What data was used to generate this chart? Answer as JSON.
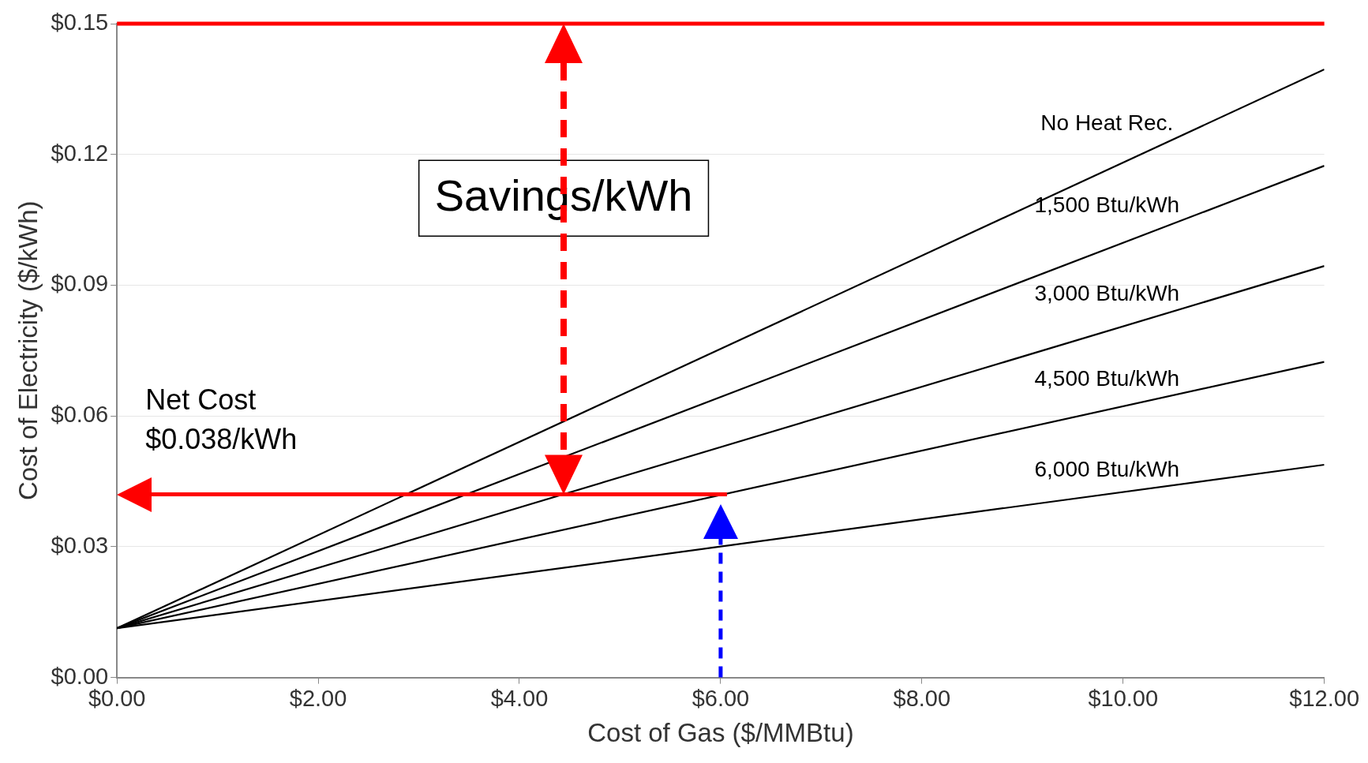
{
  "chart_data": {
    "type": "line",
    "xlabel": "Cost of Gas ($/MMBtu)",
    "ylabel": "Cost of Electricity ($/kWh)",
    "x": [
      0,
      12
    ],
    "series": [
      {
        "name": "No Heat Rec.",
        "color": "#000000",
        "values": [
          0.0113,
          0.1395
        ]
      },
      {
        "name": "1,500 Btu/kWh",
        "color": "#000000",
        "values": [
          0.0113,
          0.1174
        ]
      },
      {
        "name": "3,000 Btu/kWh",
        "color": "#000000",
        "values": [
          0.0113,
          0.0944
        ]
      },
      {
        "name": "4,500 Btu/kWh",
        "color": "#000000",
        "values": [
          0.0113,
          0.0724
        ]
      },
      {
        "name": "6,000 Btu/kWh",
        "color": "#000000",
        "values": [
          0.0113,
          0.0488
        ]
      }
    ],
    "xlim": [
      0,
      12
    ],
    "xticks": [
      {
        "value": 0,
        "label": "$0.00"
      },
      {
        "value": 2,
        "label": "$2.00"
      },
      {
        "value": 4,
        "label": "$4.00"
      },
      {
        "value": 6,
        "label": "$6.00"
      },
      {
        "value": 8,
        "label": "$8.00"
      },
      {
        "value": 10,
        "label": "$10.00"
      },
      {
        "value": 12,
        "label": "$12.00"
      }
    ],
    "ylim": [
      0,
      0.15
    ],
    "yticks": [
      {
        "value": 0,
        "label": "$0.00"
      },
      {
        "value": 0.03,
        "label": "$0.03"
      },
      {
        "value": 0.06,
        "label": "$0.06"
      },
      {
        "value": 0.09,
        "label": "$0.09"
      },
      {
        "value": 0.12,
        "label": "$0.12"
      },
      {
        "value": 0.15,
        "label": "$0.15"
      }
    ],
    "ref_lines": [
      {
        "axis": "y",
        "value": 0.15,
        "color": "#ff0000",
        "line_style": "solid"
      },
      {
        "axis": "y",
        "value": 0.042,
        "color": "#ff0000",
        "line_style": "solid"
      },
      {
        "axis": "x",
        "value": 6,
        "color": "#0000ff",
        "line_style": "dashed"
      }
    ],
    "annotations": [
      "Savings/kWh",
      "Net Cost\n$0.038/kWh"
    ],
    "grid": "y",
    "legend": false,
    "marker": "none",
    "line_style": "solid"
  }
}
